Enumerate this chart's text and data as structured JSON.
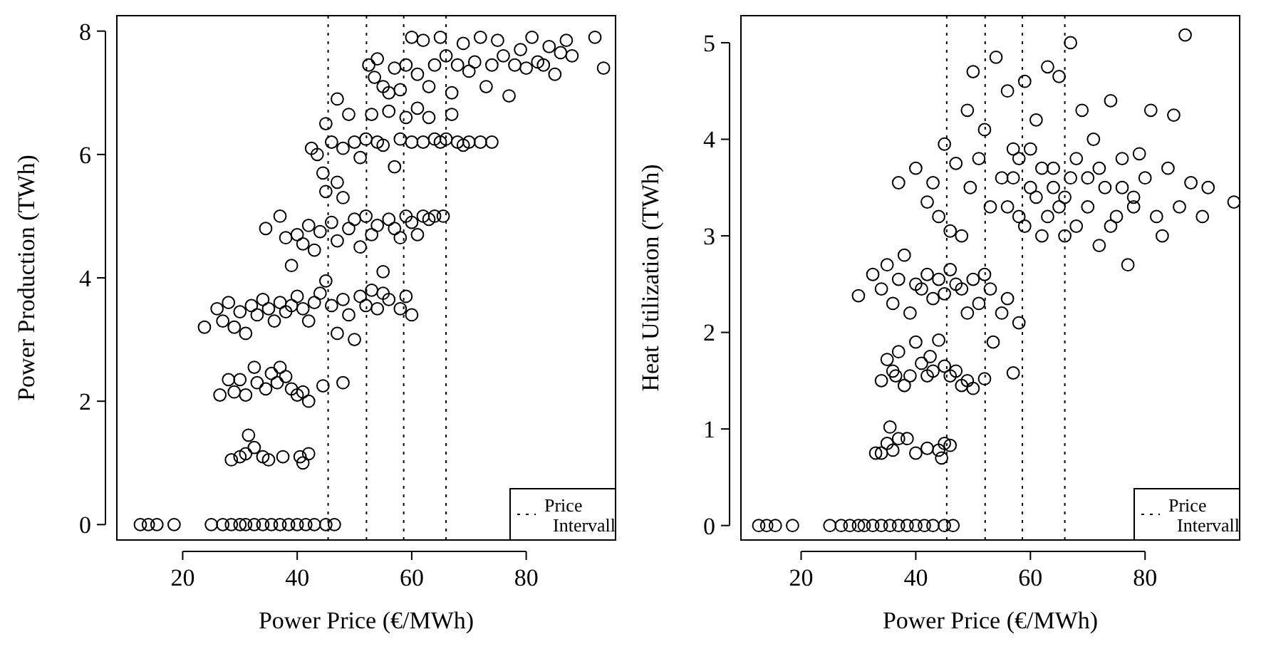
{
  "chart_data": [
    {
      "type": "scatter",
      "xlabel": "Power Price (€/MWh)",
      "ylabel": "Power Production (TWh)",
      "xlim": [
        8.5,
        95.6
      ],
      "ylim": [
        -0.25,
        8.25
      ],
      "xticks": [
        20,
        40,
        60,
        80
      ],
      "yticks": [
        0,
        2,
        4,
        6,
        8
      ],
      "grid": false,
      "marker": "circle",
      "legend": "bottom right",
      "ref_lines": [
        {
          "axis": "x",
          "value": 45.4,
          "label": "Price Intervall",
          "line_style": "dotted"
        },
        {
          "axis": "x",
          "value": 52.1,
          "line_style": "dotted"
        },
        {
          "axis": "x",
          "value": 58.6,
          "line_style": "dotted"
        },
        {
          "axis": "x",
          "value": 66,
          "line_style": "dotted"
        }
      ],
      "series": [
        {
          "color": "#000000",
          "x": [
            12.6,
            14,
            15.5,
            18.5,
            25,
            27,
            28.5,
            30,
            31,
            32.5,
            34,
            35.5,
            37,
            38.5,
            40,
            41.5,
            43,
            45,
            46.5,
            28.5,
            30,
            31,
            31.5,
            32.5,
            34,
            35,
            37.5,
            40.5,
            41,
            42,
            26.5,
            28,
            29,
            30,
            31,
            32.5,
            33,
            34.5,
            35.5,
            36.5,
            37,
            38,
            39,
            40,
            41,
            42,
            44.5,
            48,
            23.8,
            26,
            27,
            28,
            29,
            30,
            31,
            32,
            33,
            34,
            35,
            36,
            37,
            38,
            39,
            40,
            41,
            42,
            43,
            44,
            45,
            46,
            47,
            48,
            49,
            50,
            51,
            52,
            53,
            54,
            55,
            56,
            58,
            59,
            60,
            34.5,
            37,
            38,
            39,
            40,
            41,
            42,
            43,
            44,
            45,
            46,
            47,
            48,
            49,
            50,
            51,
            52,
            53,
            54,
            55,
            56,
            57,
            58,
            59,
            60,
            61,
            62,
            63,
            64,
            65.5,
            42.5,
            43.5,
            44.5,
            45,
            46,
            47,
            47,
            48,
            49,
            50,
            51,
            52,
            53,
            54,
            55,
            56,
            57,
            58,
            59,
            60,
            61,
            62,
            63,
            64,
            65,
            66,
            67,
            68,
            69,
            70,
            72,
            74,
            52.5,
            53.5,
            54,
            55,
            56,
            57,
            58,
            59,
            60,
            61,
            62,
            63,
            64,
            65,
            66,
            67,
            68,
            69,
            70,
            71,
            72,
            73,
            74,
            75,
            76,
            77,
            78,
            79,
            80,
            81,
            82,
            83,
            84,
            85,
            86,
            87,
            88,
            92,
            93.5
          ],
          "values": [
            0,
            0,
            0,
            0,
            0,
            0,
            0,
            0,
            0,
            0,
            0,
            0,
            0,
            0,
            0,
            0,
            0,
            0,
            0,
            1.05,
            1.1,
            1.15,
            1.45,
            1.25,
            1.1,
            1.05,
            1.1,
            1.1,
            1.0,
            1.15,
            2.1,
            2.35,
            2.15,
            2.35,
            2.1,
            2.55,
            2.3,
            2.2,
            2.45,
            2.3,
            2.55,
            2.4,
            2.2,
            2.1,
            2.15,
            2.0,
            2.25,
            2.3,
            3.2,
            3.5,
            3.3,
            3.6,
            3.2,
            3.45,
            3.1,
            3.55,
            3.4,
            3.65,
            3.5,
            3.3,
            3.6,
            3.45,
            3.55,
            3.7,
            3.5,
            3.3,
            3.6,
            3.75,
            3.95,
            3.55,
            3.1,
            3.65,
            3.4,
            3.0,
            3.7,
            3.55,
            3.8,
            3.5,
            3.75,
            3.65,
            3.5,
            3.7,
            3.4,
            4.8,
            5.0,
            4.65,
            4.2,
            4.7,
            4.55,
            4.85,
            4.45,
            4.75,
            5.4,
            4.9,
            4.6,
            5.3,
            4.8,
            4.95,
            4.5,
            5.0,
            4.7,
            4.85,
            4.1,
            4.95,
            4.8,
            4.65,
            5.0,
            4.9,
            4.7,
            5.0,
            4.95,
            5.0,
            5.0,
            6.1,
            6.0,
            5.7,
            6.5,
            6.2,
            5.55,
            6.9,
            6.1,
            6.65,
            6.2,
            5.95,
            6.25,
            6.65,
            6.2,
            6.15,
            6.7,
            5.8,
            6.25,
            6.6,
            6.2,
            6.75,
            6.2,
            6.6,
            6.25,
            6.2,
            6.25,
            6.65,
            6.2,
            6.15,
            6.2,
            6.2,
            6.2,
            7.45,
            7.25,
            7.55,
            7.1,
            7.0,
            7.4,
            7.05,
            7.45,
            7.9,
            7.3,
            7.85,
            7.1,
            7.45,
            7.9,
            7.6,
            7.0,
            7.45,
            7.8,
            7.35,
            7.5,
            7.9,
            7.1,
            7.45,
            7.85,
            7.6,
            6.95,
            7.45,
            7.7,
            7.4,
            7.9,
            7.5,
            7.45,
            7.75,
            7.3,
            7.65,
            7.85,
            7.6,
            7.9,
            7.4
          ]
        }
      ]
    },
    {
      "type": "scatter",
      "xlabel": "Power Price (€/MWh)",
      "ylabel": "Heat Utilization (TWh)",
      "xlim": [
        9.5,
        96.5
      ],
      "ylim": [
        -0.15,
        5.28
      ],
      "xticks": [
        20,
        40,
        60,
        80
      ],
      "yticks": [
        0,
        1,
        2,
        3,
        4,
        5
      ],
      "grid": false,
      "marker": "circle",
      "legend": "bottom right",
      "ref_lines": [
        {
          "axis": "x",
          "value": 45.4,
          "label": "Price Intervall",
          "line_style": "dotted"
        },
        {
          "axis": "x",
          "value": 52.1,
          "line_style": "dotted"
        },
        {
          "axis": "x",
          "value": 58.6,
          "line_style": "dotted"
        },
        {
          "axis": "x",
          "value": 66,
          "line_style": "dotted"
        }
      ],
      "series": [
        {
          "color": "#000000",
          "x": [
            12.6,
            14,
            15.5,
            18.5,
            25,
            27,
            28.5,
            30,
            31,
            32.5,
            34,
            35.5,
            37,
            38.5,
            40,
            41.5,
            43,
            45,
            46.5,
            33,
            34,
            35,
            35.5,
            36,
            37,
            38.5,
            40,
            42,
            44,
            44.5,
            45,
            46,
            34,
            35,
            36,
            36.5,
            37,
            38,
            39,
            40,
            41,
            42,
            42.5,
            43,
            44,
            45,
            46,
            47,
            48,
            49,
            50,
            52,
            53.5,
            57,
            30,
            32.5,
            34,
            35,
            36,
            37,
            38,
            39,
            40,
            41,
            42,
            43,
            44,
            45,
            46,
            47,
            48,
            49,
            50,
            51,
            52,
            53,
            55,
            56,
            58,
            37,
            40,
            42,
            43,
            44,
            45,
            46,
            47,
            48,
            49,
            49.5,
            50,
            51,
            52,
            53,
            54,
            55,
            56,
            57,
            58,
            59,
            60,
            61,
            62,
            63,
            64,
            65,
            66,
            67,
            68,
            69,
            70,
            71,
            72,
            73,
            74,
            75,
            76,
            77,
            78,
            79,
            80,
            81,
            82,
            83,
            84,
            85,
            86,
            87,
            88,
            90,
            91,
            95.5,
            56,
            57,
            58,
            59,
            60,
            61,
            62,
            63,
            64,
            65,
            66,
            67,
            68,
            70,
            72,
            74,
            76,
            78
          ],
          "values": [
            0,
            0,
            0,
            0,
            0,
            0,
            0,
            0,
            0,
            0,
            0,
            0,
            0,
            0,
            0,
            0,
            0,
            0,
            0,
            0.75,
            0.75,
            0.85,
            1.02,
            0.78,
            0.9,
            0.9,
            0.75,
            0.8,
            0.78,
            0.7,
            0.85,
            0.83,
            1.5,
            1.72,
            1.6,
            1.55,
            1.8,
            1.45,
            1.55,
            1.9,
            1.68,
            1.55,
            1.75,
            1.6,
            1.92,
            1.65,
            1.55,
            1.6,
            1.45,
            1.5,
            1.42,
            1.52,
            1.9,
            1.58,
            2.38,
            2.6,
            2.45,
            2.7,
            2.3,
            2.55,
            2.8,
            2.2,
            2.5,
            2.45,
            2.6,
            2.35,
            2.55,
            2.4,
            2.65,
            2.5,
            2.45,
            2.2,
            2.55,
            2.3,
            2.6,
            2.45,
            2.2,
            2.35,
            2.1,
            3.55,
            3.7,
            3.35,
            3.55,
            3.2,
            3.95,
            3.05,
            3.75,
            3.0,
            4.3,
            3.5,
            4.7,
            3.8,
            4.1,
            3.3,
            4.85,
            3.6,
            4.5,
            3.9,
            3.2,
            4.6,
            3.5,
            4.2,
            3.0,
            4.75,
            3.7,
            4.65,
            3.4,
            5.0,
            3.1,
            4.3,
            3.6,
            4.0,
            2.9,
            3.5,
            4.4,
            3.2,
            3.8,
            2.7,
            3.3,
            3.85,
            3.6,
            4.3,
            3.2,
            3.0,
            3.7,
            4.25,
            3.3,
            5.08,
            3.55,
            3.2,
            3.5,
            3.35,
            3.3,
            3.6,
            3.8,
            3.1,
            3.9,
            3.4,
            3.7,
            3.2,
            3.5,
            3.3,
            3.0,
            3.6,
            3.8,
            3.3,
            3.7,
            3.1,
            3.5,
            3.4
          ]
        }
      ]
    }
  ]
}
